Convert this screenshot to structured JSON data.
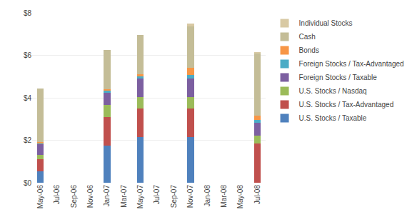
{
  "chart_data": {
    "type": "bar",
    "stacked": true,
    "categories": [
      "May-06",
      "Jul-06",
      "Sep-06",
      "Nov-06",
      "Jan-07",
      "Mar-07",
      "May-07",
      "Jul-07",
      "Sep-07",
      "Nov-07",
      "Jan-08",
      "Mar-08",
      "May-08",
      "Jul-08"
    ],
    "series": [
      {
        "name": "U.S. Stocks / Taxable",
        "color": "#4F81BD",
        "values": [
          0.55,
          0,
          0,
          0,
          1.75,
          0,
          2.15,
          0,
          0,
          2.15,
          0,
          0,
          0,
          0.0
        ]
      },
      {
        "name": "U.S. Stocks / Tax-Advantaged",
        "color": "#C0504D",
        "values": [
          0.55,
          0,
          0,
          0,
          1.35,
          0,
          1.35,
          0,
          0,
          1.35,
          0,
          0,
          0,
          1.85
        ]
      },
      {
        "name": "U.S. Stocks / Nasdaq",
        "color": "#9BBB59",
        "values": [
          0.22,
          0,
          0,
          0,
          0.55,
          0,
          0.55,
          0,
          0,
          0.55,
          0,
          0,
          0,
          0.38
        ]
      },
      {
        "name": "Foreign Stocks / Taxable",
        "color": "#7C5FA0",
        "values": [
          0.5,
          0,
          0,
          0,
          0.6,
          0,
          0.85,
          0,
          0,
          0.85,
          0,
          0,
          0,
          0.6
        ]
      },
      {
        "name": "Foreign Stocks / Tax-Advantaged",
        "color": "#4BACC6",
        "values": [
          0.04,
          0,
          0,
          0,
          0.08,
          0,
          0.1,
          0,
          0,
          0.18,
          0,
          0,
          0,
          0.14
        ]
      },
      {
        "name": "Bonds",
        "color": "#F79646",
        "values": [
          0.04,
          0,
          0,
          0,
          0.08,
          0,
          0.1,
          0,
          0,
          0.33,
          0,
          0,
          0,
          0.18
        ]
      },
      {
        "name": "Cash",
        "color": "#C4BD97",
        "values": [
          2.55,
          0,
          0,
          0,
          1.85,
          0,
          1.85,
          0,
          0,
          1.95,
          0,
          0,
          0,
          2.95
        ]
      },
      {
        "name": "Individual Stocks",
        "color": "#D8C9A3",
        "values": [
          0.0,
          0,
          0,
          0,
          0.0,
          0,
          0.0,
          0,
          0,
          0.12,
          0,
          0,
          0,
          0.04
        ]
      }
    ],
    "ylim": [
      0,
      8
    ],
    "yticks": [
      {
        "value": 0,
        "label": "$0"
      },
      {
        "value": 2,
        "label": "$2"
      },
      {
        "value": 4,
        "label": "$4"
      },
      {
        "value": 6,
        "label": "$6"
      },
      {
        "value": 8,
        "label": "$8"
      }
    ],
    "grid": true,
    "legend": "right"
  }
}
